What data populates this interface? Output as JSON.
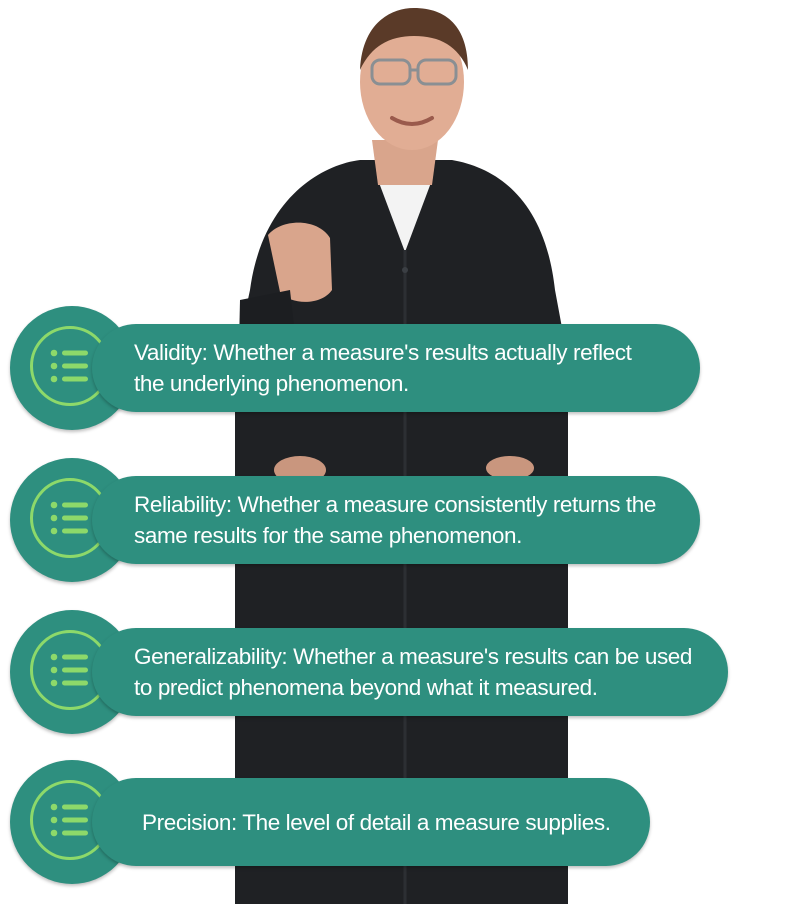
{
  "colors": {
    "card_fill": "#2e8f7f",
    "ring": "#8dd96a",
    "text": "#ffffff"
  },
  "cards": [
    {
      "icon": "list-icon",
      "lines": [
        "Validity: Whether a measure's results actually reflect",
        "the underlying phenomenon."
      ]
    },
    {
      "icon": "list-icon",
      "lines": [
        "Reliability: Whether a measure consistently returns the",
        "same results for the same phenomenon."
      ]
    },
    {
      "icon": "list-icon",
      "lines": [
        "Generalizability: Whether a measure's results can be used",
        "to predict phenomena beyond what it measured."
      ]
    },
    {
      "icon": "list-icon",
      "lines": [
        "Precision: The level of detail a measure supplies."
      ]
    }
  ]
}
